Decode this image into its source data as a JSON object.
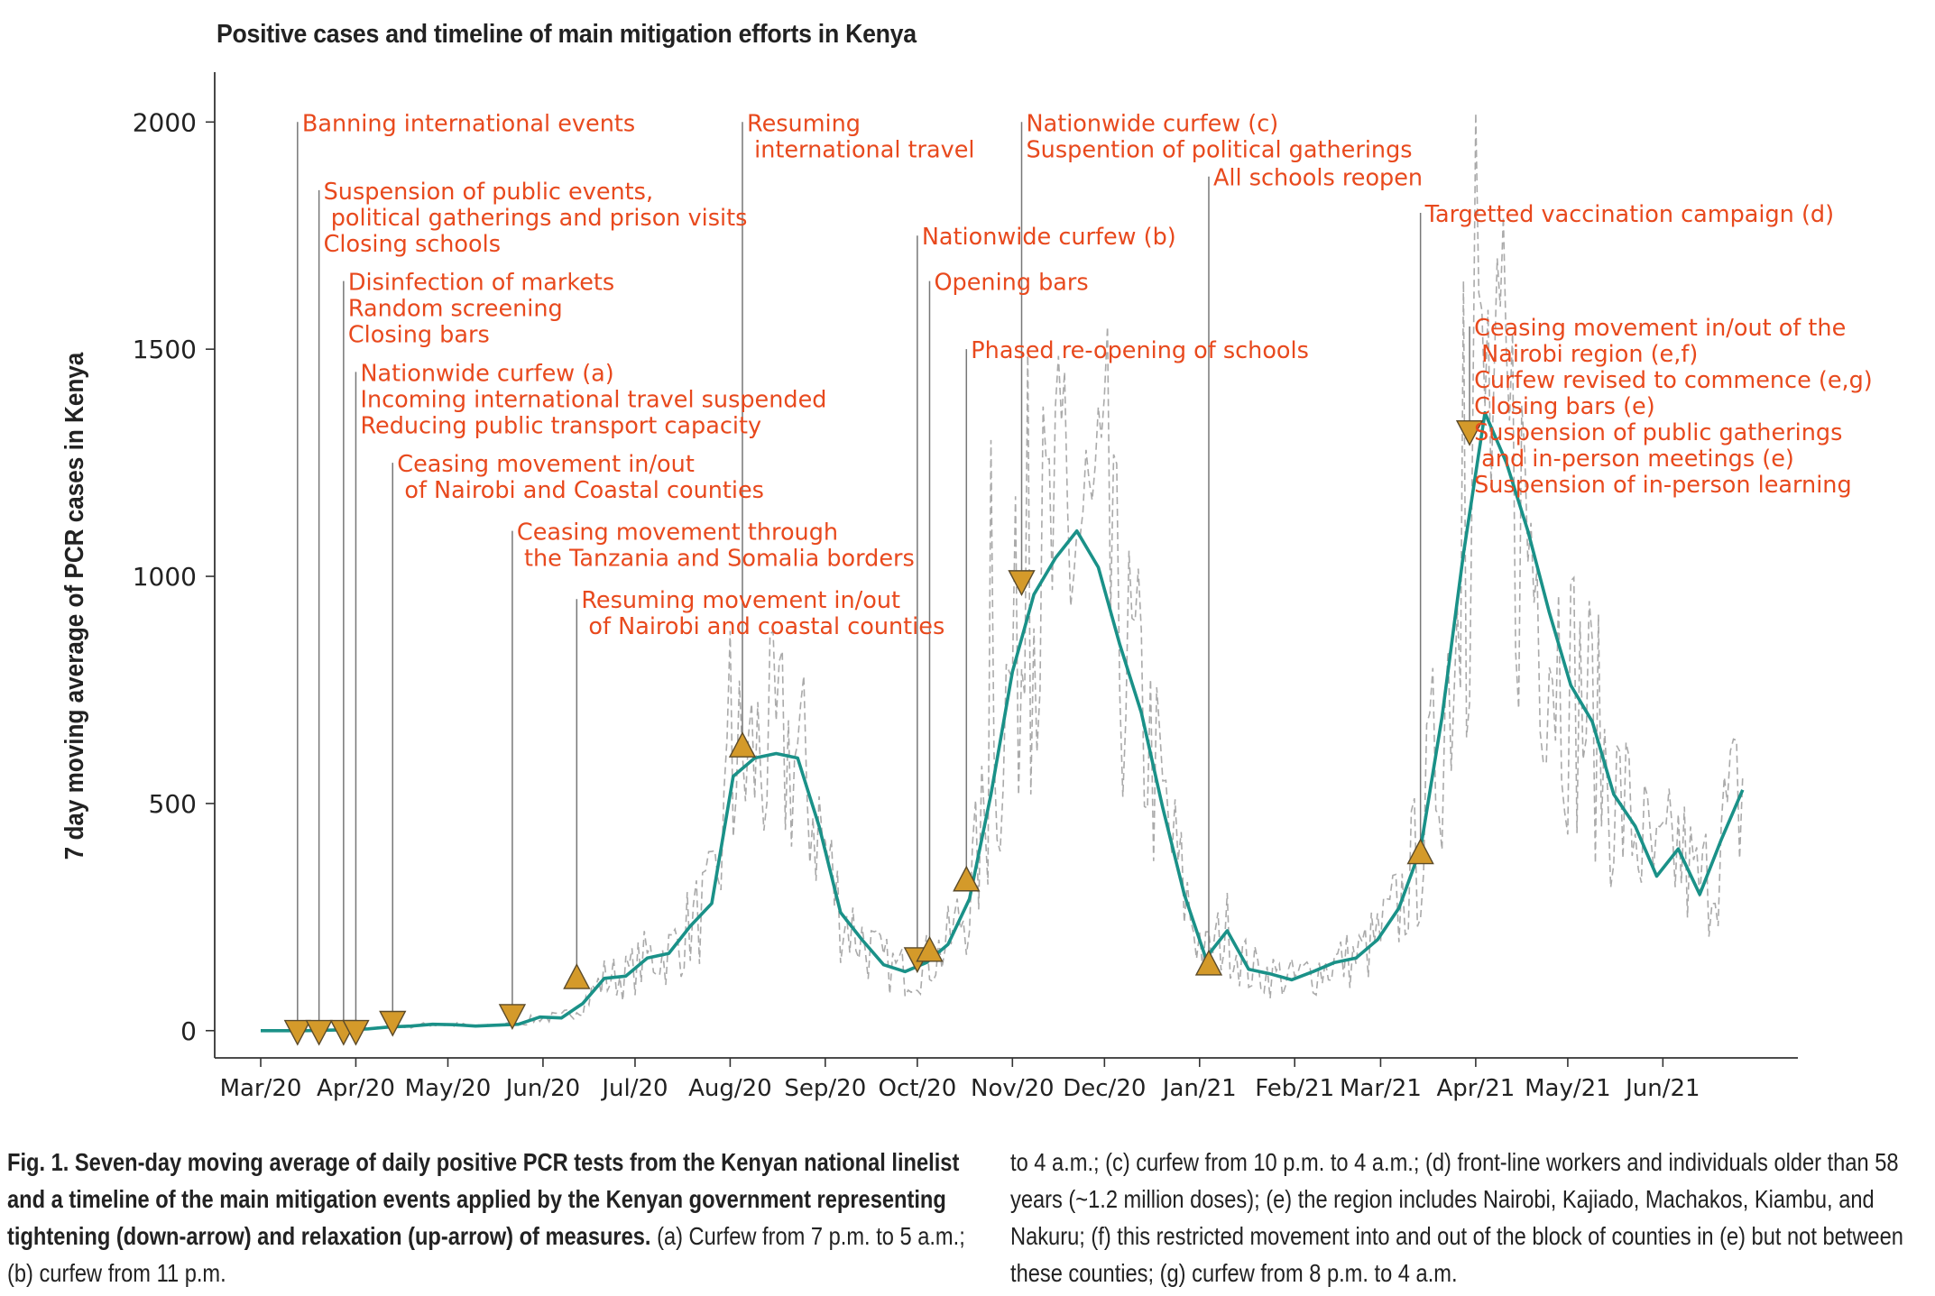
{
  "title": "Positive cases and timeline of main mitigation efforts in Kenya",
  "chart_data": {
    "type": "line",
    "ylabel": "7 day moving average of PCR cases in Kenya",
    "ylim": [
      -60,
      2080
    ],
    "yticks": [
      0,
      500,
      1000,
      1500,
      2000
    ],
    "x_tick_labels": [
      "Mar/20",
      "Apr/20",
      "May/20",
      "Jun/20",
      "Jul/20",
      "Aug/20",
      "Sep/20",
      "Oct/20",
      "Nov/20",
      "Dec/20",
      "Jan/21",
      "Feb/21",
      "Mar/21",
      "Apr/21",
      "May/21",
      "Jun/21"
    ],
    "x_tick_dates": [
      "2020-03-01",
      "2020-04-01",
      "2020-05-01",
      "2020-06-01",
      "2020-07-01",
      "2020-08-01",
      "2020-09-01",
      "2020-10-01",
      "2020-11-01",
      "2020-12-01",
      "2021-01-01",
      "2021-02-01",
      "2021-03-01",
      "2021-04-01",
      "2021-05-01",
      "2021-06-01"
    ],
    "xlim": [
      "2020-02-15",
      "2021-07-15"
    ],
    "colors": {
      "moving_average": "#1a9188",
      "daily": "#aaaaaa",
      "annotation_text": "#e8491d",
      "marker": "#d49a2a",
      "marker_edge": "#5a4a2a",
      "leader": "#777777"
    },
    "moving_average": [
      [
        "2020-03-01",
        0
      ],
      [
        "2020-03-15",
        0
      ],
      [
        "2020-03-22",
        1
      ],
      [
        "2020-03-29",
        2
      ],
      [
        "2020-04-05",
        4
      ],
      [
        "2020-04-12",
        8
      ],
      [
        "2020-04-19",
        10
      ],
      [
        "2020-04-26",
        14
      ],
      [
        "2020-05-03",
        13
      ],
      [
        "2020-05-10",
        10
      ],
      [
        "2020-05-17",
        12
      ],
      [
        "2020-05-24",
        14
      ],
      [
        "2020-05-31",
        30
      ],
      [
        "2020-06-07",
        28
      ],
      [
        "2020-06-14",
        60
      ],
      [
        "2020-06-21",
        115
      ],
      [
        "2020-06-28",
        120
      ],
      [
        "2020-07-05",
        160
      ],
      [
        "2020-07-12",
        170
      ],
      [
        "2020-07-19",
        230
      ],
      [
        "2020-07-26",
        280
      ],
      [
        "2020-08-02",
        560
      ],
      [
        "2020-08-09",
        600
      ],
      [
        "2020-08-16",
        610
      ],
      [
        "2020-08-23",
        600
      ],
      [
        "2020-08-30",
        450
      ],
      [
        "2020-09-06",
        260
      ],
      [
        "2020-09-13",
        200
      ],
      [
        "2020-09-20",
        145
      ],
      [
        "2020-09-27",
        130
      ],
      [
        "2020-10-04",
        150
      ],
      [
        "2020-10-11",
        190
      ],
      [
        "2020-10-18",
        290
      ],
      [
        "2020-10-25",
        520
      ],
      [
        "2020-11-01",
        790
      ],
      [
        "2020-11-08",
        960
      ],
      [
        "2020-11-15",
        1040
      ],
      [
        "2020-11-22",
        1100
      ],
      [
        "2020-11-29",
        1020
      ],
      [
        "2020-12-06",
        850
      ],
      [
        "2020-12-13",
        700
      ],
      [
        "2020-12-20",
        490
      ],
      [
        "2020-12-27",
        300
      ],
      [
        "2021-01-03",
        160
      ],
      [
        "2021-01-10",
        220
      ],
      [
        "2021-01-17",
        135
      ],
      [
        "2021-01-24",
        125
      ],
      [
        "2021-01-31",
        112
      ],
      [
        "2021-02-07",
        130
      ],
      [
        "2021-02-14",
        150
      ],
      [
        "2021-02-21",
        160
      ],
      [
        "2021-02-28",
        200
      ],
      [
        "2021-03-07",
        270
      ],
      [
        "2021-03-14",
        400
      ],
      [
        "2021-03-21",
        690
      ],
      [
        "2021-03-28",
        1050
      ],
      [
        "2021-04-04",
        1360
      ],
      [
        "2021-04-11",
        1250
      ],
      [
        "2021-04-18",
        1100
      ],
      [
        "2021-04-25",
        920
      ],
      [
        "2021-05-02",
        760
      ],
      [
        "2021-05-09",
        680
      ],
      [
        "2021-05-16",
        520
      ],
      [
        "2021-05-23",
        450
      ],
      [
        "2021-05-30",
        340
      ],
      [
        "2021-06-06",
        400
      ],
      [
        "2021-06-13",
        300
      ],
      [
        "2021-06-20",
        420
      ],
      [
        "2021-06-27",
        530
      ]
    ],
    "daily_peaks": [
      [
        "2020-08-01",
        880
      ],
      [
        "2020-10-25",
        1300
      ],
      [
        "2020-11-06",
        1500
      ],
      [
        "2020-11-18",
        1450
      ],
      [
        "2020-12-02",
        1550
      ],
      [
        "2021-03-28",
        1650
      ],
      [
        "2021-04-01",
        2020
      ],
      [
        "2021-04-08",
        1700
      ],
      [
        "2021-06-28",
        790
      ]
    ],
    "markers": [
      {
        "date": "2020-03-13",
        "value": 0,
        "dir": "down"
      },
      {
        "date": "2020-03-20",
        "value": 0,
        "dir": "down"
      },
      {
        "date": "2020-03-28",
        "value": 0,
        "dir": "down"
      },
      {
        "date": "2020-04-01",
        "value": 0,
        "dir": "down"
      },
      {
        "date": "2020-04-13",
        "value": 20,
        "dir": "down"
      },
      {
        "date": "2020-05-22",
        "value": 35,
        "dir": "down"
      },
      {
        "date": "2020-06-12",
        "value": 115,
        "dir": "up"
      },
      {
        "date": "2020-08-05",
        "value": 625,
        "dir": "up"
      },
      {
        "date": "2020-10-01",
        "value": 160,
        "dir": "down"
      },
      {
        "date": "2020-10-05",
        "value": 175,
        "dir": "up"
      },
      {
        "date": "2020-10-17",
        "value": 330,
        "dir": "up"
      },
      {
        "date": "2020-11-04",
        "value": 990,
        "dir": "down"
      },
      {
        "date": "2021-01-04",
        "value": 145,
        "dir": "up"
      },
      {
        "date": "2021-03-14",
        "value": 390,
        "dir": "up"
      },
      {
        "date": "2021-03-30",
        "value": 1320,
        "dir": "down"
      }
    ],
    "annotations": [
      {
        "date": "2020-03-13",
        "top": 2000,
        "lines": [
          "Banning international events"
        ]
      },
      {
        "date": "2020-03-20",
        "top": 1850,
        "lines": [
          "Suspension of public events,",
          " political gatherings and prison visits",
          "Closing schools"
        ]
      },
      {
        "date": "2020-03-28",
        "top": 1650,
        "lines": [
          "Disinfection of markets",
          "Random screening",
          "Closing bars"
        ]
      },
      {
        "date": "2020-04-01",
        "top": 1450,
        "lines": [
          "Nationwide curfew (a)",
          "Incoming international travel suspended",
          "Reducing public transport capacity"
        ]
      },
      {
        "date": "2020-04-13",
        "top": 1250,
        "lines": [
          "Ceasing movement in/out",
          " of Nairobi and Coastal counties"
        ]
      },
      {
        "date": "2020-05-22",
        "top": 1100,
        "lines": [
          "Ceasing movement through",
          " the Tanzania and Somalia borders"
        ]
      },
      {
        "date": "2020-06-12",
        "top": 950,
        "lines": [
          "Resuming movement in/out",
          " of Nairobi and coastal counties"
        ]
      },
      {
        "date": "2020-08-05",
        "top": 2000,
        "lines": [
          "Resuming",
          " international travel"
        ]
      },
      {
        "date": "2020-10-01",
        "top": 1750,
        "lines": [
          "Nationwide curfew (b)"
        ]
      },
      {
        "date": "2020-10-05",
        "top": 1650,
        "lines": [
          "Opening bars"
        ]
      },
      {
        "date": "2020-10-17",
        "top": 1500,
        "lines": [
          "Phased re-opening of schools"
        ]
      },
      {
        "date": "2020-11-04",
        "top": 2000,
        "lines": [
          "Nationwide curfew (c)",
          "Suspention of political gatherings"
        ]
      },
      {
        "date": "2021-01-04",
        "top": 1880,
        "lines": [
          "All schools reopen"
        ]
      },
      {
        "date": "2021-03-14",
        "top": 1800,
        "lines": [
          "Targetted vaccination campaign (d)"
        ]
      },
      {
        "date": "2021-03-30",
        "top": 1550,
        "lines": [
          "Ceasing movement in/out of the",
          " Nairobi region (e,f)",
          "Curfew revised to commence (e,g)",
          "Closing bars (e)",
          "Suspension of public gatherings",
          " and in-person meetings (e)",
          "Suspension of in-person learning"
        ]
      }
    ]
  },
  "caption": {
    "bold": "Fig. 1. Seven-day moving average of daily positive PCR tests from the Kenyan national linelist and a timeline of the main mitigation events applied by the Kenyan government representing tightening (down-arrow) and relaxation (up-arrow) of measures.",
    "left_rest": " (a) Curfew from 7 p.m. to 5 a.m.; (b) curfew from 11 p.m.",
    "right": "to 4 a.m.; (c) curfew from 10 p.m. to 4 a.m.; (d) front-line workers and individuals older than 58 years (~1.2 million doses); (e) the region includes Nairobi, Kajiado, Machakos, Kiambu, and Nakuru; (f) this restricted movement into and out of the block of counties in (e) but not between these counties; (g) curfew from 8 p.m. to 4 a.m."
  }
}
